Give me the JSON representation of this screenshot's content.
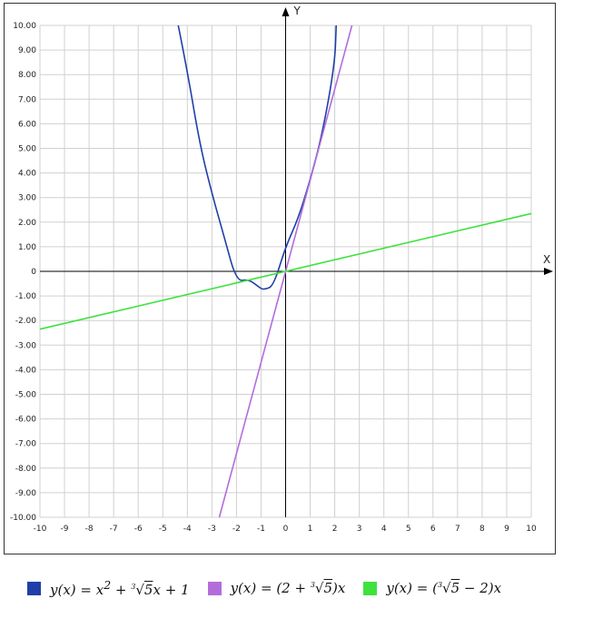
{
  "chart_data": {
    "type": "line",
    "title": "",
    "xlabel": "X",
    "ylabel": "Y",
    "xlim": [
      -10,
      10
    ],
    "ylim": [
      -10,
      10
    ],
    "grid": true,
    "legend_position": "bottom",
    "x_ticks": [
      "-10",
      "-9",
      "-8",
      "-7",
      "-6",
      "-5",
      "-4",
      "-3",
      "-2",
      "-1",
      "0",
      "1",
      "2",
      "3",
      "4",
      "5",
      "6",
      "7",
      "8",
      "9",
      "10"
    ],
    "y_ticks": [
      "10.00",
      "9.00",
      "8.00",
      "7.00",
      "6.00",
      "5.00",
      "4.00",
      "3.00",
      "2.00",
      "1.00",
      "0",
      "-1.00",
      "-2.00",
      "-3.00",
      "-4.00",
      "-5.00",
      "-6.00",
      "-7.00",
      "-8.00",
      "-9.00",
      "-10.00"
    ],
    "series": [
      {
        "name": "y(x) = x² + ∛5x + 1",
        "color": "#1f3fa8",
        "x": [
          -4.37,
          -4,
          -3.5,
          -3,
          -2.5,
          -2,
          -1.5,
          -1,
          -0.855,
          -0.5,
          0,
          0.5,
          1,
          1.5,
          2,
          2.06
        ],
        "y": [
          10.0,
          8.15,
          5.2,
          3.16,
          1.4,
          -0.42,
          -0.31,
          -0.71,
          -0.73,
          -0.61,
          1.0,
          2.11,
          3.71,
          5.61,
          8.42,
          10.0
        ]
      },
      {
        "name": "y(x) = (2 + ∛5)x",
        "color": "#b36ddb",
        "x": [
          -2.7,
          2.7
        ],
        "y": [
          -10.0,
          10.0
        ]
      },
      {
        "name": "y(x) = (∛5 − 2)x",
        "color": "#3ee23e",
        "x": [
          -10,
          10
        ],
        "y": [
          -2.35,
          2.35
        ]
      }
    ]
  },
  "legend": [
    {
      "html": "y(x) = x<sup>2</sup> + <sup style='font-size:8px'>3</sup>&#8730;<span style='text-decoration:overline'>5</span>x + 1"
    },
    {
      "html": "y(x) = (2 + <sup style='font-size:8px'>3</sup>&#8730;<span style='text-decoration:overline'>5</span>)x"
    },
    {
      "html": "y(x) = (<sup style='font-size:8px'>3</sup>&#8730;<span style='text-decoration:overline'>5</span> &#8722; 2)x"
    }
  ]
}
